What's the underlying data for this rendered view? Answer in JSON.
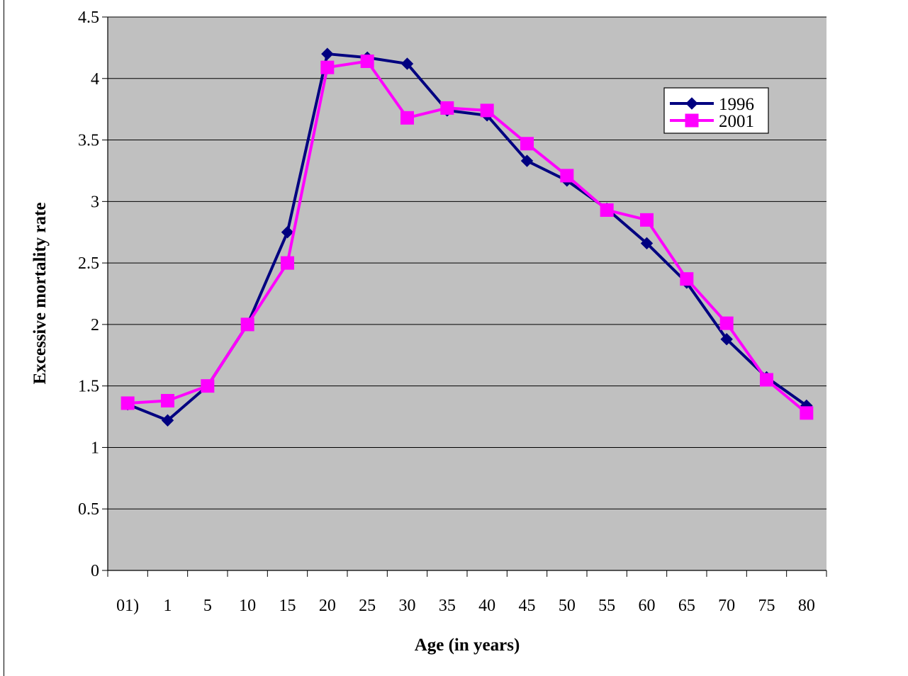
{
  "chart_data": {
    "type": "line",
    "categories": [
      "01)",
      "1",
      "5",
      "10",
      "15",
      "20",
      "25",
      "30",
      "35",
      "40",
      "45",
      "50",
      "55",
      "60",
      "65",
      "70",
      "75",
      "80"
    ],
    "series": [
      {
        "name": "1996",
        "color": "#000080",
        "marker": "diamond",
        "values": [
          1.35,
          1.22,
          1.5,
          2.0,
          2.75,
          4.2,
          4.17,
          4.12,
          3.74,
          3.7,
          3.33,
          3.17,
          2.94,
          2.66,
          2.34,
          1.88,
          1.57,
          1.34
        ]
      },
      {
        "name": "2001",
        "color": "#FF00FF",
        "marker": "square",
        "values": [
          1.36,
          1.38,
          1.5,
          2.0,
          2.5,
          4.09,
          4.14,
          3.68,
          3.76,
          3.74,
          3.47,
          3.21,
          2.93,
          2.85,
          2.37,
          2.01,
          1.55,
          1.28
        ]
      }
    ],
    "title": "",
    "xlabel": "Age (in years)",
    "ylabel": "Excessive mortality rate",
    "ylim": [
      0,
      4.5
    ],
    "yticks": [
      "0",
      "0.5",
      "1",
      "1.5",
      "2",
      "2.5",
      "3",
      "3.5",
      "4",
      "4.5"
    ],
    "grid": "horizontal",
    "legend_position": "top-right",
    "plot_background": "#C0C0C0"
  }
}
